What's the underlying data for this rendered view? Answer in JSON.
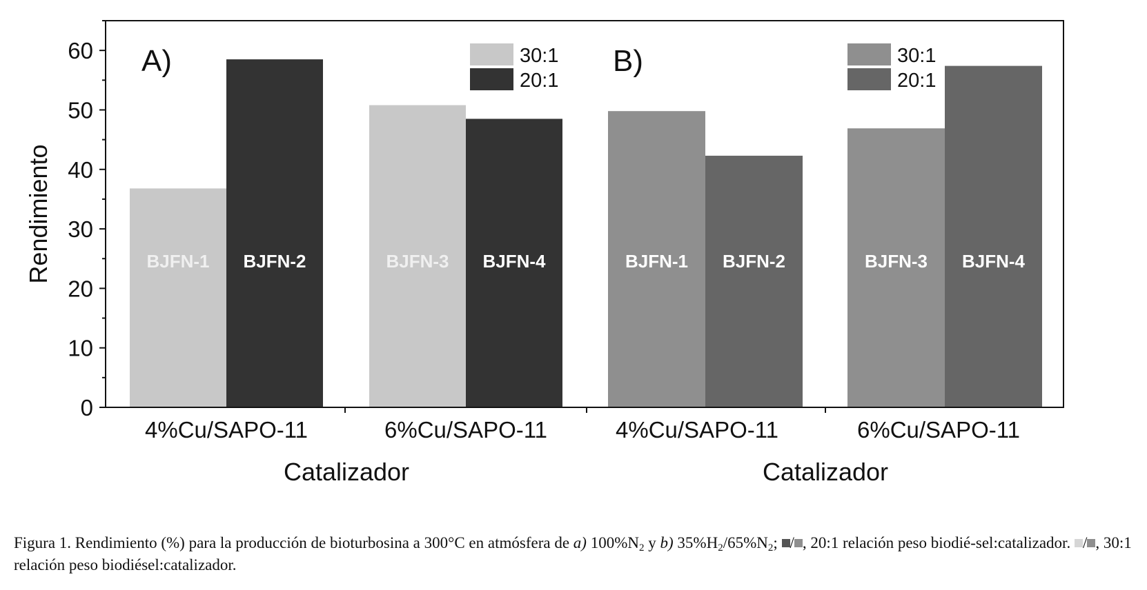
{
  "chart_data": {
    "type": "bar",
    "ylabel": "Rendimiento",
    "xlabel": "Catalizador",
    "ylim": [
      0,
      65
    ],
    "yticks": [
      0,
      10,
      20,
      30,
      40,
      50,
      60
    ],
    "yticks_labels": [
      "0",
      "10",
      "20",
      "30",
      "40",
      "50",
      "60"
    ],
    "panels": [
      {
        "panel_label": "A)",
        "categories": [
          "4%Cu/SAPO-11",
          "6%Cu/SAPO-11"
        ],
        "series": [
          {
            "name": "30:1",
            "color": "#c8c8c8",
            "label_color": "#f0f0f0",
            "values": [
              36.8,
              50.8
            ],
            "bar_labels": [
              "BJFN-1",
              "BJFN-3"
            ]
          },
          {
            "name": "20:1",
            "color": "#333333",
            "label_color": "#ffffff",
            "values": [
              58.5,
              48.5
            ],
            "bar_labels": [
              "BJFN-2",
              "BJFN-4"
            ]
          }
        ]
      },
      {
        "panel_label": "B)",
        "categories": [
          "4%Cu/SAPO-11",
          "6%Cu/SAPO-11"
        ],
        "series": [
          {
            "name": "30:1",
            "color": "#8f8f8f",
            "label_color": "#ffffff",
            "values": [
              49.8,
              46.9
            ],
            "bar_labels": [
              "BJFN-1",
              "BJFN-3"
            ]
          },
          {
            "name": "20:1",
            "color": "#666666",
            "label_color": "#ffffff",
            "values": [
              42.3,
              57.4
            ],
            "bar_labels": [
              "BJFN-2",
              "BJFN-4"
            ]
          }
        ]
      }
    ]
  },
  "caption": {
    "p1": "Figura 1. Rendimiento (%) para la producción de bioturbosina a 300°C en atmósfera de ",
    "a_label": "a)",
    "p2": " 100%N",
    "sub2a": "2",
    "p3": " y ",
    "b_label": "b)",
    "p4": " 35%H",
    "sub2b": "2",
    "p5": "/65%N",
    "sub2c": "2",
    "p6": "; ",
    "slash1": "/",
    "p7": ", 20:1 relación peso biodié-sel:catalizador. ",
    "slash2": "/",
    "p8": ", 30:1 relación peso biodiésel:catalizador."
  }
}
